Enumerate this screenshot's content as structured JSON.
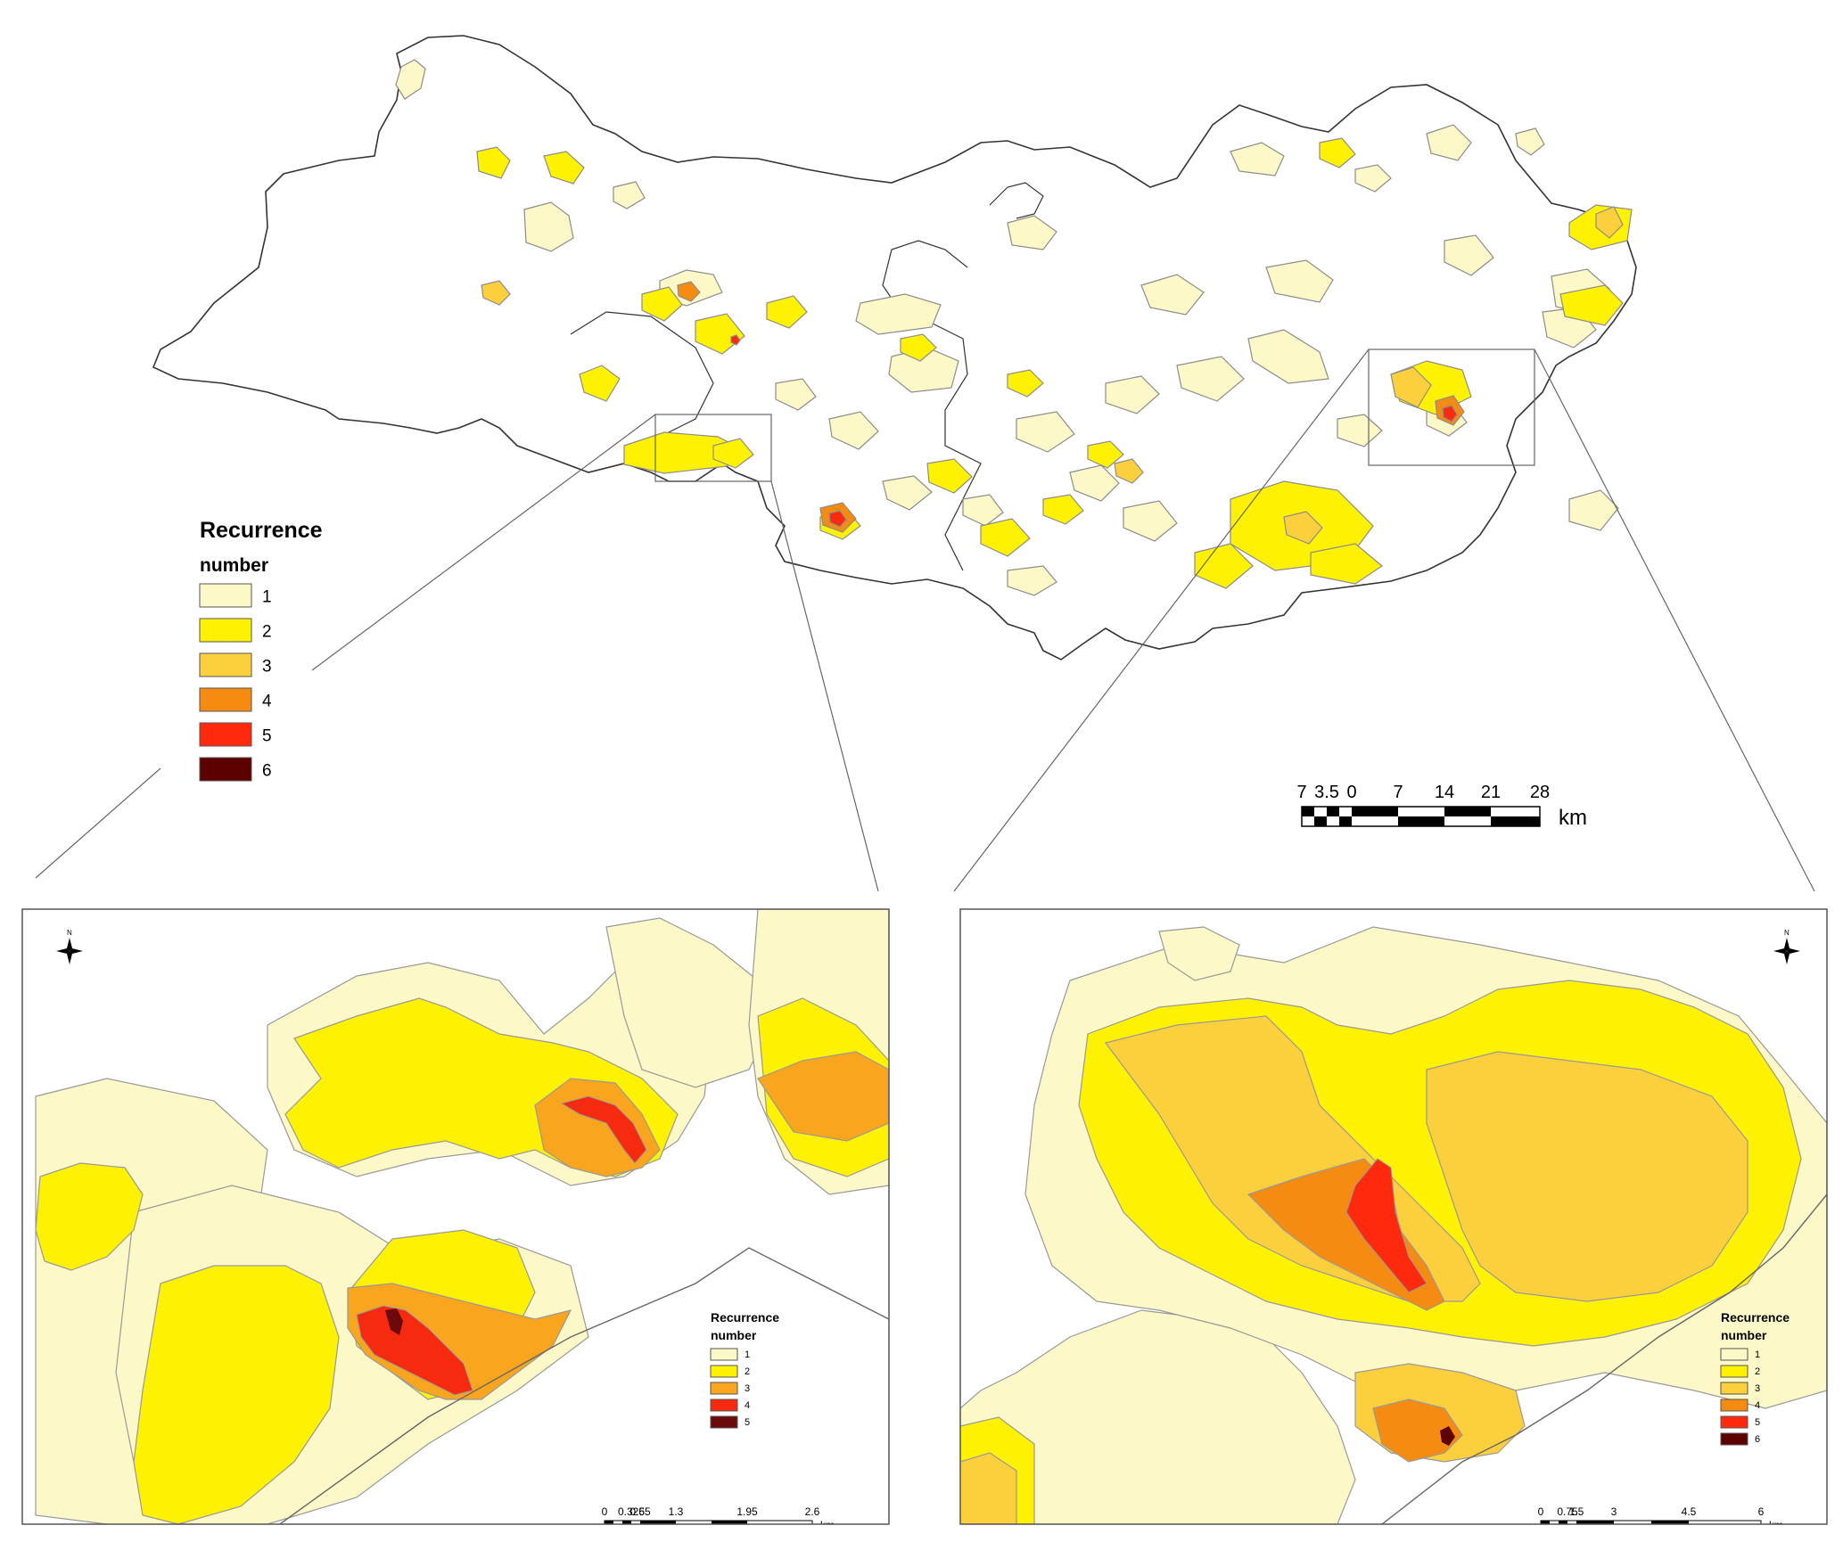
{
  "main_map": {
    "legend": {
      "title_line1": "Recurrence",
      "title_line2": "number",
      "classes": [
        {
          "label": "1",
          "color": "#fdf8c7"
        },
        {
          "label": "2",
          "color": "#fef200"
        },
        {
          "label": "3",
          "color": "#fccf3c"
        },
        {
          "label": "4",
          "color": "#f68b12"
        },
        {
          "label": "5",
          "color": "#ff2a0e"
        },
        {
          "label": "6",
          "color": "#5c0000"
        }
      ]
    },
    "scale_bar": {
      "ticks": [
        "7",
        "3.5",
        "0",
        "7",
        "14",
        "21",
        "28"
      ],
      "unit": "km"
    }
  },
  "inset_left": {
    "north_label": "N",
    "legend": {
      "title_line1": "Recurrence",
      "title_line2": "number",
      "classes": [
        {
          "label": "1",
          "color": "#fdf8c7"
        },
        {
          "label": "2",
          "color": "#fef200"
        },
        {
          "label": "3",
          "color": "#f9a51e"
        },
        {
          "label": "4",
          "color": "#f52a0f"
        },
        {
          "label": "5",
          "color": "#6b0a0a"
        }
      ]
    },
    "scale_bar": {
      "ticks": [
        "0",
        "0.325",
        "0.65",
        "1.3",
        "1.95",
        "2.6"
      ],
      "unit": "km"
    }
  },
  "inset_right": {
    "north_label": "N",
    "legend": {
      "title_line1": "Recurrence",
      "title_line2": "number",
      "classes": [
        {
          "label": "1",
          "color": "#fdf8c7"
        },
        {
          "label": "2",
          "color": "#fef200"
        },
        {
          "label": "3",
          "color": "#fccf3c"
        },
        {
          "label": "4",
          "color": "#f68b12"
        },
        {
          "label": "5",
          "color": "#ff2a0e"
        },
        {
          "label": "6",
          "color": "#5c0000"
        }
      ]
    },
    "scale_bar": {
      "ticks": [
        "0",
        "0.75",
        "1.5",
        "3",
        "4.5",
        "6"
      ],
      "unit": "km"
    }
  }
}
